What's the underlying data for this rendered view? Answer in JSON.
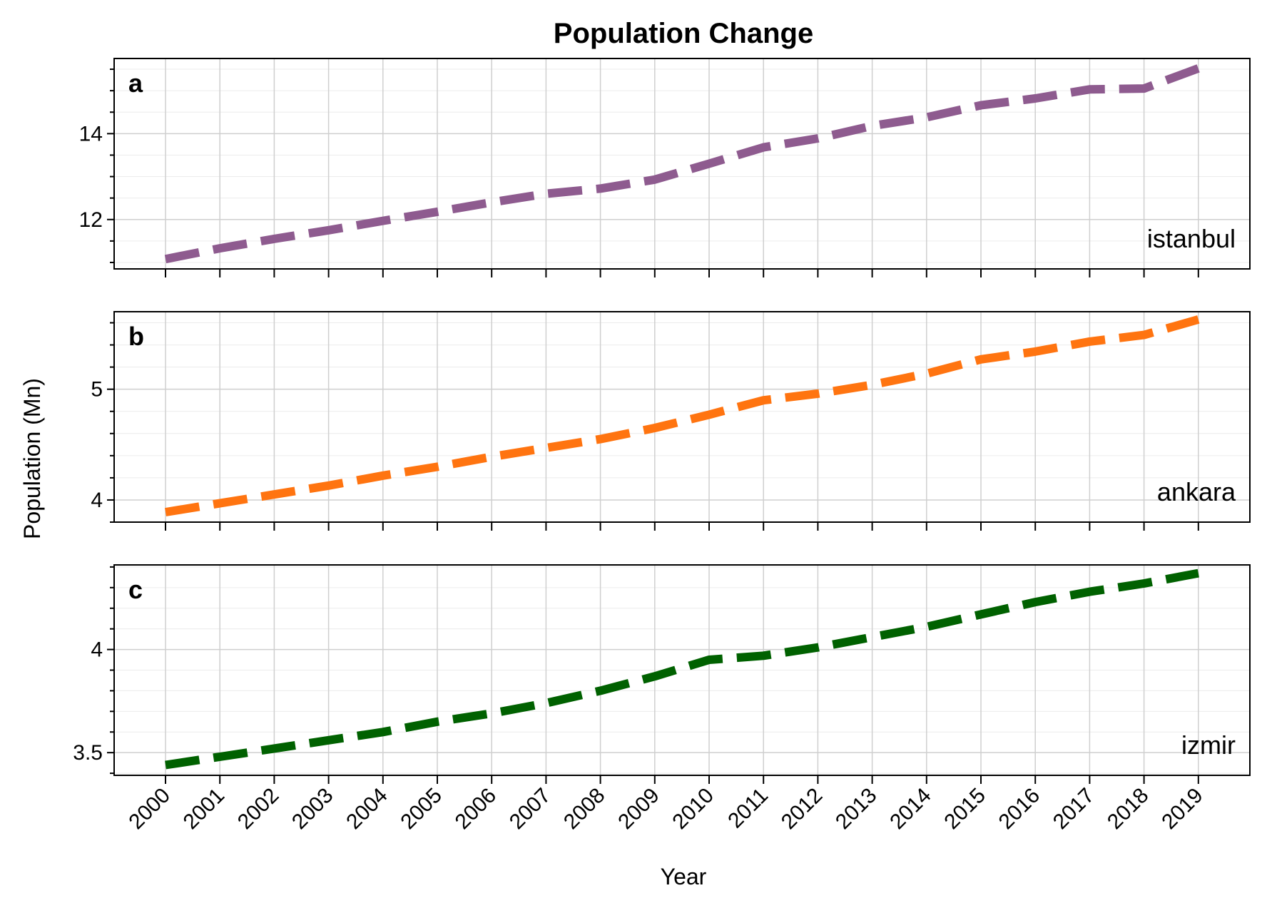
{
  "chart_data": {
    "type": "line",
    "title": "Population Change",
    "xlabel": "Year",
    "ylabel": "Population (Mn)",
    "x": [
      2000,
      2001,
      2002,
      2003,
      2004,
      2005,
      2006,
      2007,
      2008,
      2009,
      2010,
      2011,
      2012,
      2013,
      2014,
      2015,
      2016,
      2017,
      2018,
      2019
    ],
    "x_tick_labels": [
      "2000",
      "2001",
      "2002",
      "2003",
      "2004",
      "2005",
      "2006",
      "2007",
      "2008",
      "2009",
      "2010",
      "2011",
      "2012",
      "2013",
      "2014",
      "2015",
      "2016",
      "2017",
      "2018",
      "2019"
    ],
    "grid": true,
    "line_style": "dashed",
    "panels": [
      {
        "letter": "a",
        "name": "istanbul",
        "color": "#8e5b8f",
        "ylim": [
          10.85,
          15.75
        ],
        "yticks": [
          12,
          14
        ],
        "ytick_labels": [
          "12",
          "14"
        ],
        "yminor_step": 0.5,
        "values": [
          11.08,
          11.33,
          11.55,
          11.75,
          11.97,
          12.18,
          12.4,
          12.6,
          12.72,
          12.93,
          13.3,
          13.68,
          13.89,
          14.18,
          14.38,
          14.66,
          14.82,
          15.03,
          15.05,
          15.52
        ]
      },
      {
        "letter": "b",
        "name": "ankara",
        "color": "#ff7410",
        "ylim": [
          3.8,
          5.7
        ],
        "yticks": [
          4,
          5
        ],
        "ytick_labels": [
          "4",
          "5"
        ],
        "yminor_step": 0.2,
        "values": [
          3.89,
          3.97,
          4.05,
          4.13,
          4.22,
          4.3,
          4.39,
          4.47,
          4.55,
          4.65,
          4.77,
          4.9,
          4.96,
          5.04,
          5.14,
          5.27,
          5.34,
          5.43,
          5.49,
          5.63
        ]
      },
      {
        "letter": "c",
        "name": "izmir",
        "color": "#006100",
        "ylim": [
          3.39,
          4.41
        ],
        "yticks": [
          3.5,
          4.0
        ],
        "ytick_labels": [
          "3.5",
          "4"
        ],
        "yminor_step": 0.1,
        "values": [
          3.44,
          3.48,
          3.52,
          3.56,
          3.6,
          3.65,
          3.69,
          3.74,
          3.8,
          3.87,
          3.95,
          3.97,
          4.01,
          4.06,
          4.11,
          4.17,
          4.23,
          4.28,
          4.32,
          4.37
        ]
      }
    ]
  }
}
